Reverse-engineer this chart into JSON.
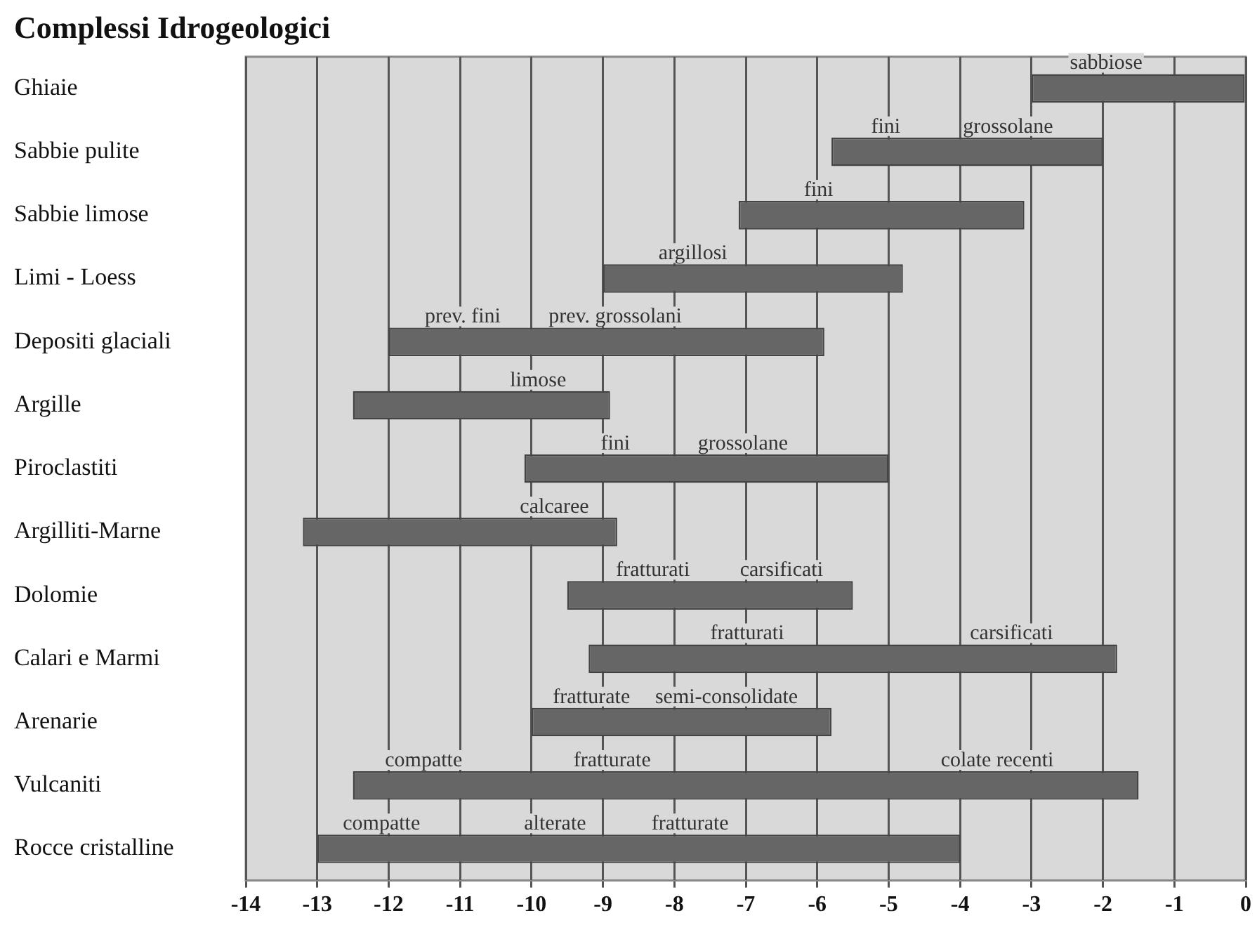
{
  "chart_data": {
    "type": "bar",
    "orientation": "horizontal",
    "title": "Complessi Idrogeologici",
    "categories": [
      "Ghiaie",
      "Sabbie pulite",
      "Sabbie limose",
      "Limi - Loess",
      "Depositi glaciali",
      "Argille",
      "Piroclastiti",
      "Argilliti-Marne",
      "Dolomie",
      "Calari e Marmi",
      "Arenarie",
      "Vulcaniti",
      "Rocce cristalline"
    ],
    "base": [
      -3,
      -5.8,
      -7.1,
      -9.0,
      -12.0,
      -12.5,
      -10.1,
      -13.2,
      -9.5,
      -9.2,
      -10.0,
      -12.5,
      -13.0
    ],
    "values": [
      3,
      3.8,
      4.0,
      4.2,
      6.1,
      3.6,
      5.1,
      4.4,
      4.0,
      7.4,
      4.2,
      11.0,
      9.0
    ],
    "color": "#666666",
    "xlim": [
      -14,
      0
    ],
    "xticks": [
      -14,
      -13,
      -12,
      -11,
      -10,
      -9,
      -8,
      -7,
      -6,
      -5,
      -4,
      -3,
      -2,
      -1,
      0
    ],
    "grid": "x",
    "legend": false,
    "annotations": [
      "sabbiose",
      "fini",
      "grossolane",
      "fini",
      "argillosi",
      "prev. fini",
      "prev. grossolani",
      "limose",
      "fini",
      "grossolane",
      "calcaree",
      "fratturati",
      "carsificati",
      "fratturati",
      "carsificati",
      "fratturate",
      "semi-consolidate",
      "compatte",
      "fratturate",
      "colate recenti",
      "compatte",
      "alterate",
      "fratturate"
    ]
  }
}
